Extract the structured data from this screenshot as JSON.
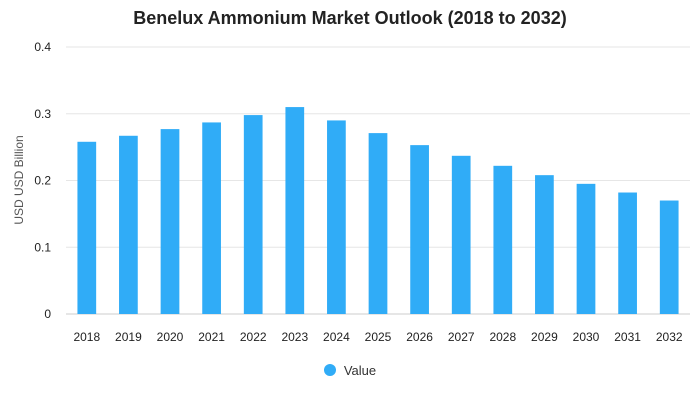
{
  "colors": {
    "bar": "#30acf7",
    "grid": "#e6e6e6",
    "axis_text": "#222222"
  },
  "chart_data": {
    "type": "bar",
    "title": "Benelux Ammonium Market Outlook (2018 to 2032)",
    "ylabel": "USD USD Billion",
    "xlabel": "",
    "ylim": [
      0,
      0.4
    ],
    "yticks": [
      0,
      0.1,
      0.2,
      0.3,
      0.4
    ],
    "ytick_labels": [
      "0",
      "0.1",
      "0.2",
      "0.3",
      "0.4"
    ],
    "grid": true,
    "legend_position": "bottom",
    "categories": [
      "2018",
      "2019",
      "2020",
      "2021",
      "2022",
      "2023",
      "2024",
      "2025",
      "2026",
      "2027",
      "2028",
      "2029",
      "2030",
      "2031",
      "2032"
    ],
    "series": [
      {
        "name": "Value",
        "values": [
          0.258,
          0.267,
          0.277,
          0.287,
          0.298,
          0.31,
          0.29,
          0.271,
          0.253,
          0.237,
          0.222,
          0.208,
          0.195,
          0.182,
          0.17
        ]
      }
    ]
  }
}
